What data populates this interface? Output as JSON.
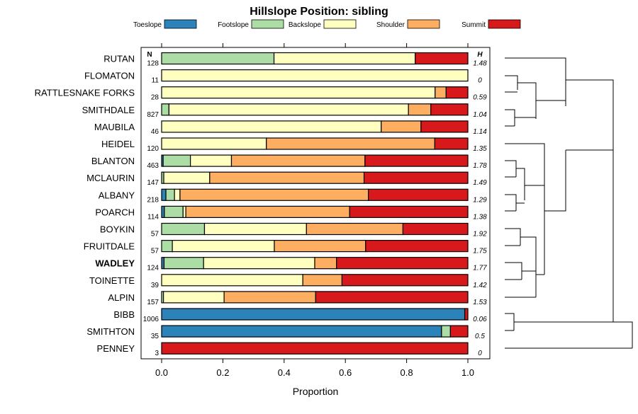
{
  "chart_data": {
    "type": "bar",
    "orientation": "horizontal-stacked",
    "title": "Hillslope Position: sibling",
    "xlabel": "Proportion",
    "xlim": [
      0,
      1
    ],
    "x_ticks": [
      "0.0",
      "0.2",
      "0.4",
      "0.6",
      "0.8",
      "1.0"
    ],
    "n_header": "N",
    "h_header": "H",
    "highlighted_series": "WADLEY",
    "legend": [
      {
        "name": "Toeslope",
        "color": "#2b83ba"
      },
      {
        "name": "Footslope",
        "color": "#abdda4"
      },
      {
        "name": "Backslope",
        "color": "#ffffbf"
      },
      {
        "name": "Shoulder",
        "color": "#fdae61"
      },
      {
        "name": "Summit",
        "color": "#d7191c"
      }
    ],
    "categories": [
      "RUTAN",
      "FLOMATON",
      "RATTLESNAKE FORKS",
      "SMITHDALE",
      "MAUBILA",
      "HEIDEL",
      "BLANTON",
      "MCLAURIN",
      "ALBANY",
      "POARCH",
      "BOYKIN",
      "FRUITDALE",
      "WADLEY",
      "TOINETTE",
      "ALPIN",
      "BIBB",
      "SMITHTON",
      "PENNEY"
    ],
    "n": [
      "128",
      "11",
      "28",
      "827",
      "46",
      "120",
      "463",
      "147",
      "218",
      "114",
      "57",
      "57",
      "124",
      "39",
      "157",
      "1006",
      "35",
      "3"
    ],
    "h": [
      "1.48",
      "0",
      "0.59",
      "1.04",
      "1.14",
      "1.35",
      "1.78",
      "1.49",
      "1.29",
      "1.38",
      "1.92",
      "1.75",
      "1.77",
      "1.42",
      "1.53",
      "0.06",
      "0.5",
      "0"
    ],
    "series": [
      {
        "name": "Toeslope",
        "values": [
          0,
          0,
          0,
          0,
          0,
          0,
          0.005,
          0,
          0.014,
          0.009,
          0,
          0,
          0.008,
          0,
          0,
          0.99,
          0.914,
          0
        ]
      },
      {
        "name": "Footslope",
        "values": [
          0.367,
          0,
          0,
          0.024,
          0,
          0,
          0.089,
          0.007,
          0.028,
          0.061,
          0.14,
          0.035,
          0.129,
          0,
          0.006,
          0,
          0.029,
          0
        ]
      },
      {
        "name": "Backslope",
        "values": [
          0.461,
          1.0,
          0.893,
          0.782,
          0.717,
          0.342,
          0.134,
          0.15,
          0.018,
          0.009,
          0.333,
          0.333,
          0.363,
          0.461,
          0.198,
          0,
          0,
          0
        ]
      },
      {
        "name": "Shoulder",
        "values": [
          0,
          0,
          0.036,
          0.073,
          0.13,
          0.55,
          0.436,
          0.504,
          0.615,
          0.535,
          0.315,
          0.298,
          0.071,
          0.128,
          0.299,
          0,
          0,
          0
        ]
      },
      {
        "name": "Summit",
        "values": [
          0.172,
          0,
          0.071,
          0.121,
          0.153,
          0.108,
          0.336,
          0.339,
          0.325,
          0.386,
          0.212,
          0.334,
          0.429,
          0.411,
          0.497,
          0.01,
          0.057,
          1.0
        ]
      }
    ]
  }
}
